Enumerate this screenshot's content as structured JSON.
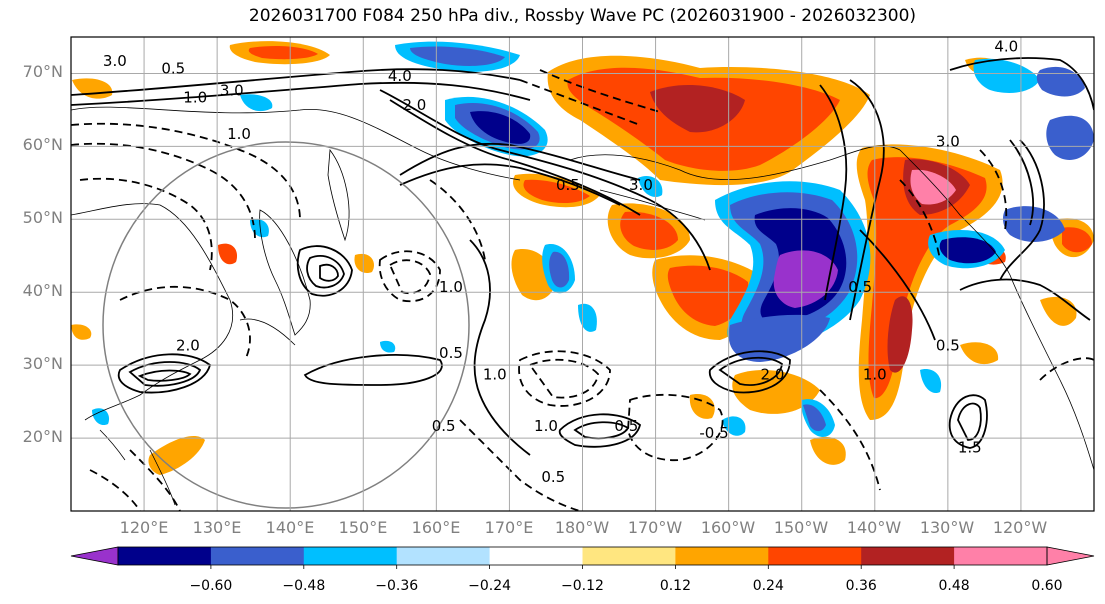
{
  "title": "2026031700 F084 250 hPa div., Rossby Wave PC (2026031900 - 2026032300)",
  "latitude_labels": [
    "70°N",
    "60°N",
    "50°N",
    "40°N",
    "30°N",
    "20°N"
  ],
  "longitude_labels": [
    "120°E",
    "130°E",
    "140°E",
    "150°E",
    "160°E",
    "170°E",
    "180°W",
    "170°W",
    "160°W",
    "150°W",
    "140°W",
    "130°W",
    "120°W"
  ],
  "colorbar": {
    "tick_labels": [
      "−0.60",
      "−0.48",
      "−0.36",
      "−0.24",
      "−0.12",
      "0.12",
      "0.24",
      "0.36",
      "0.48",
      "0.60"
    ],
    "colors": [
      "#9932cc",
      "#00008b",
      "#3a5fcd",
      "#00bfff",
      "#b2e2ff",
      "#ffffff",
      "#ffe680",
      "#ffa500",
      "#ff4500",
      "#b22222",
      "#ff80a8",
      "#ff80a8"
    ]
  },
  "map": {
    "extent": {
      "lon_west": 110,
      "lon_east": 250,
      "lat_south": 10,
      "lat_north": 75
    },
    "graticule_lons": [
      120,
      130,
      140,
      150,
      160,
      170,
      180,
      190,
      200,
      210,
      220,
      230,
      240
    ],
    "graticule_lats": [
      20,
      30,
      40,
      50,
      60,
      70
    ],
    "contour_labels": [
      {
        "text": "3.0",
        "lon": 116,
        "lat": 71
      },
      {
        "text": "0.5",
        "lon": 124,
        "lat": 70
      },
      {
        "text": "3.0",
        "lon": 132,
        "lat": 67
      },
      {
        "text": "1.0",
        "lon": 127,
        "lat": 66
      },
      {
        "text": "4.0",
        "lon": 155,
        "lat": 69
      },
      {
        "text": "2.0",
        "lon": 157,
        "lat": 65
      },
      {
        "text": "1.0",
        "lon": 133,
        "lat": 61
      },
      {
        "text": "2.0",
        "lon": 126,
        "lat": 32
      },
      {
        "text": "0.5",
        "lon": 162,
        "lat": 31
      },
      {
        "text": "1.0",
        "lon": 162,
        "lat": 40
      },
      {
        "text": "1.0",
        "lon": 168,
        "lat": 28
      },
      {
        "text": "0.5",
        "lon": 161,
        "lat": 21
      },
      {
        "text": "1.0",
        "lon": 175,
        "lat": 21
      },
      {
        "text": "0.5",
        "lon": 186,
        "lat": 21
      },
      {
        "text": "-0.5",
        "lon": 198,
        "lat": 20
      },
      {
        "text": "0.5",
        "lon": 176,
        "lat": 14
      },
      {
        "text": "2.0",
        "lon": 206,
        "lat": 28
      },
      {
        "text": "3.0",
        "lon": 188,
        "lat": 54
      },
      {
        "text": "0.5",
        "lon": 178,
        "lat": 54
      },
      {
        "text": "0.5",
        "lon": 218,
        "lat": 40
      },
      {
        "text": "1.0",
        "lon": 220,
        "lat": 28
      },
      {
        "text": "4.0",
        "lon": 238,
        "lat": 73
      },
      {
        "text": "3.0",
        "lon": 230,
        "lat": 60
      },
      {
        "text": "0.5",
        "lon": 230,
        "lat": 32
      },
      {
        "text": "1.5",
        "lon": 233,
        "lat": 18
      }
    ]
  }
}
